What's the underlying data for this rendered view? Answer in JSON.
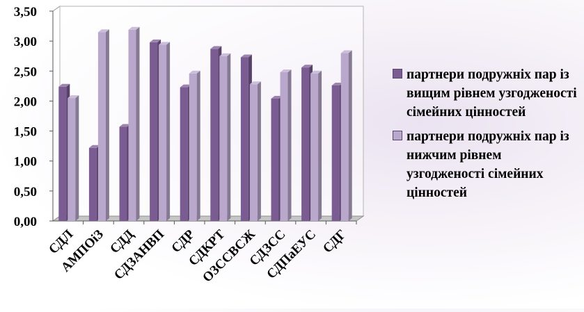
{
  "chart_data": {
    "type": "bar",
    "title": "",
    "xlabel": "",
    "ylabel": "",
    "categories": [
      "СДЛ",
      "АМПОіЗ",
      "СДД",
      "СДЗАНВП",
      "СДР",
      "СДКРТ",
      "ОЗССВСЖ",
      "СДЗСС",
      "СДПаЕУС",
      "СДГ"
    ],
    "series": [
      {
        "name": "партнери подружніх пар із вищим рівнем узгодженості сімейних цінностей",
        "color": "#7a5c93",
        "values": [
          2.24,
          1.22,
          1.57,
          2.98,
          2.23,
          2.87,
          2.73,
          2.04,
          2.56,
          2.26
        ]
      },
      {
        "name": "партнери подружніх пар із нижчим рівнем узгодженості сімейних цінностей",
        "color": "#b9a8cc",
        "values": [
          2.05,
          3.15,
          3.19,
          2.94,
          2.46,
          2.75,
          2.28,
          2.48,
          2.46,
          2.8
        ]
      }
    ],
    "ylim": [
      0,
      3.5
    ],
    "yticks": [
      "0,00",
      "0,50",
      "1,00",
      "1,50",
      "2,00",
      "2,50",
      "3,00",
      "3,50"
    ],
    "grid": false,
    "legend_position": "right",
    "style": "3d-clustered"
  }
}
